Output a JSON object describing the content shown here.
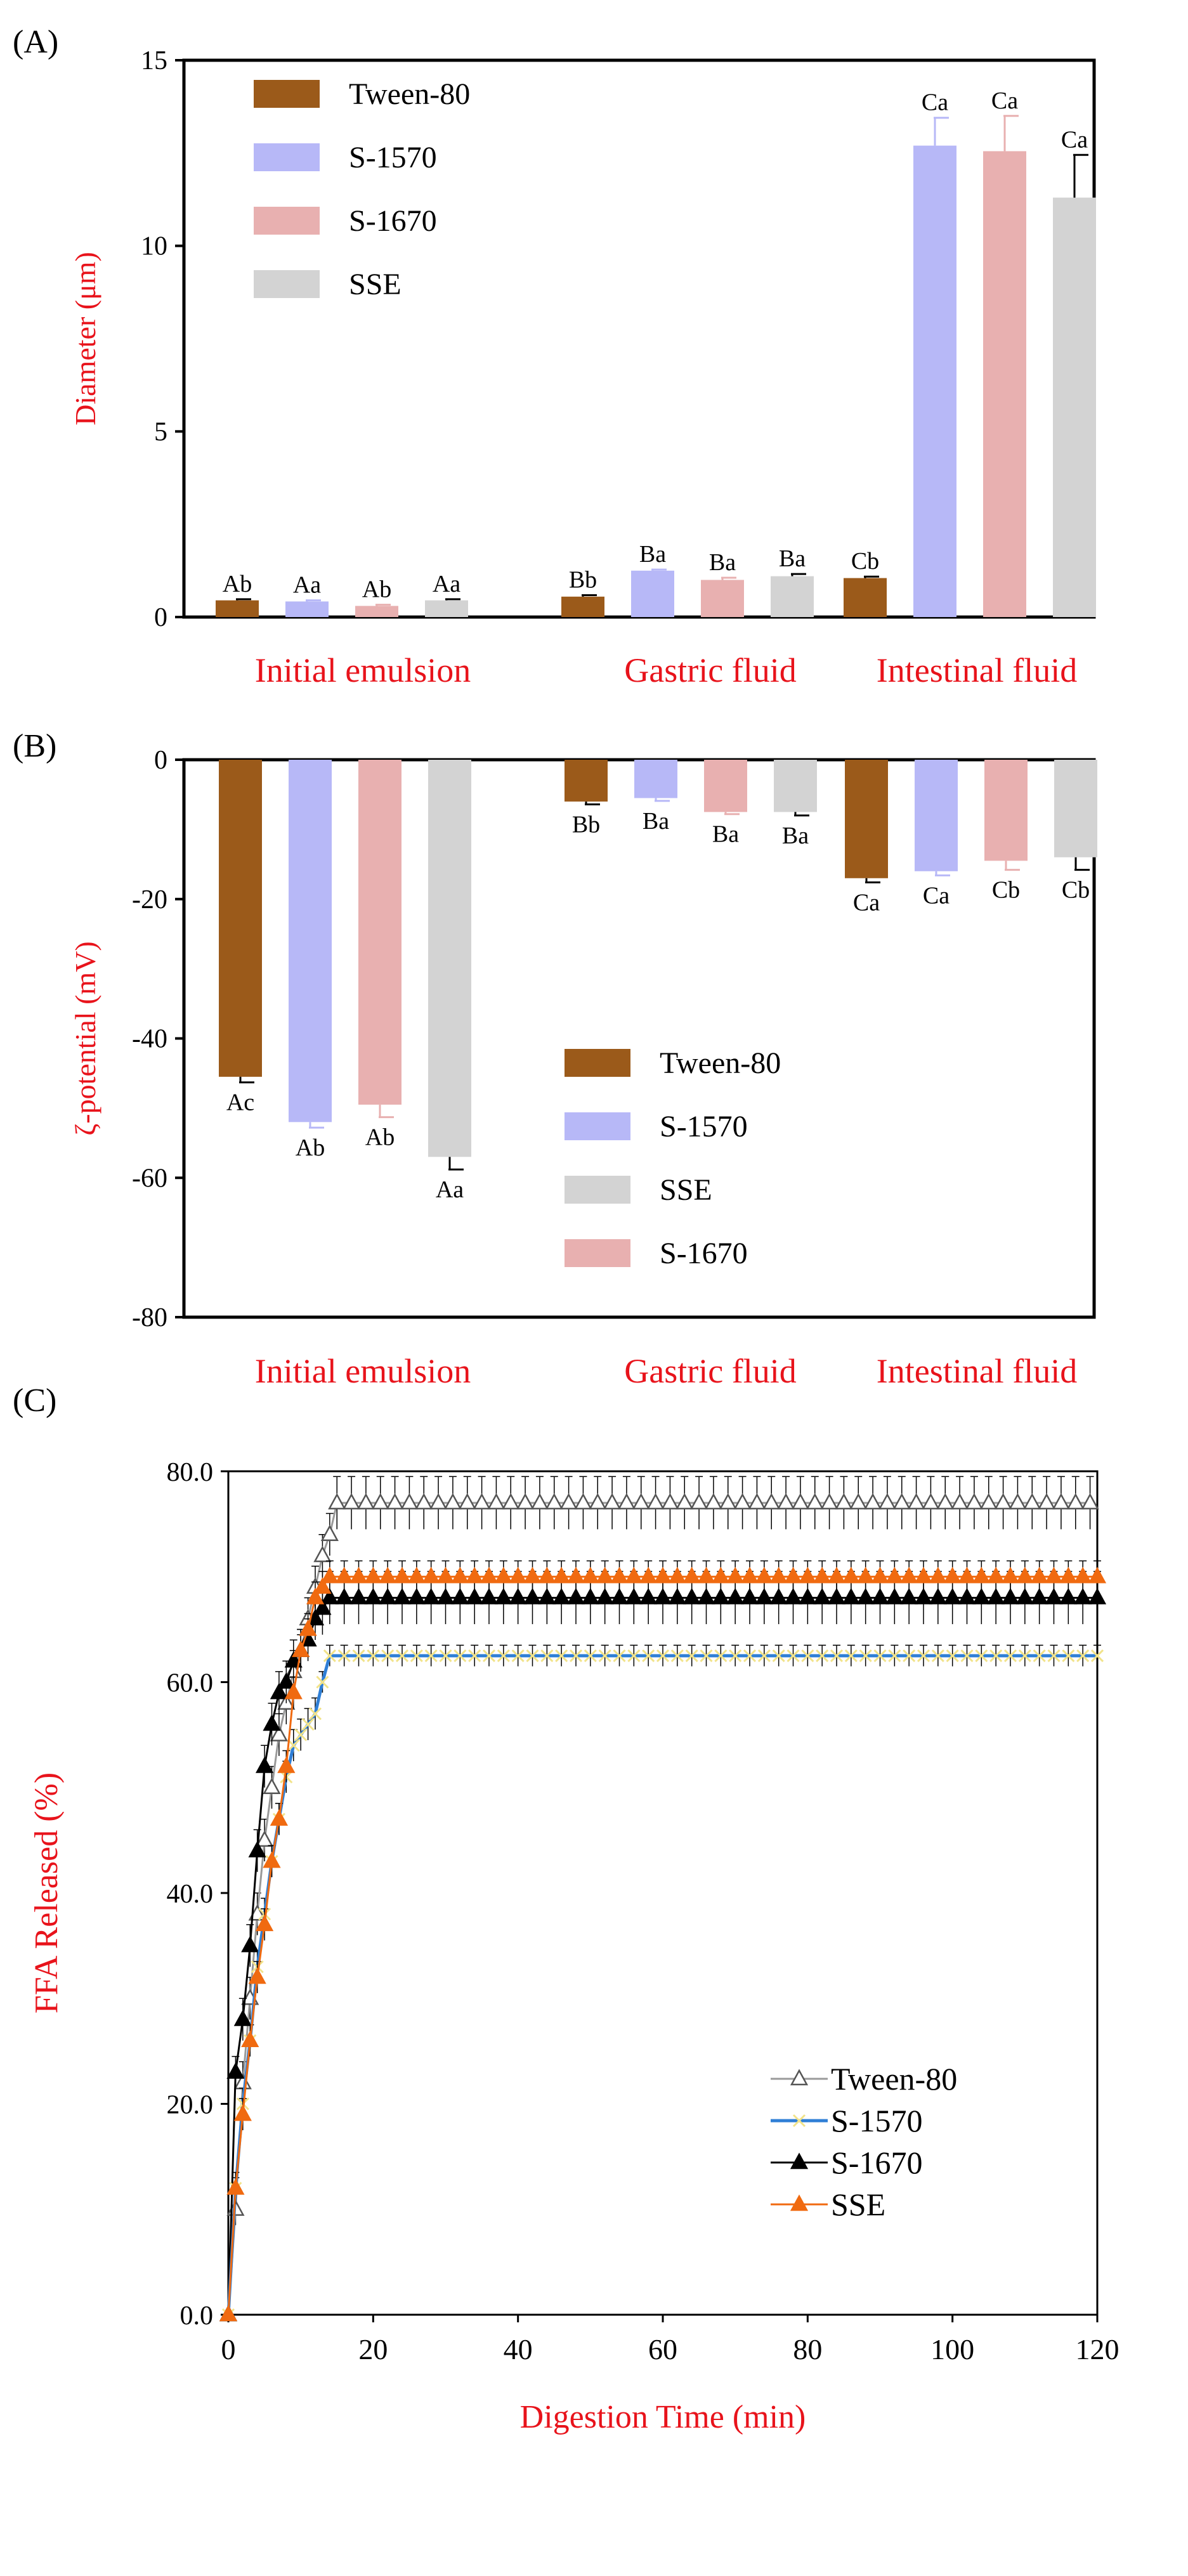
{
  "colors": {
    "tween80": "#9b5a1a",
    "s1570": "#b7b8f7",
    "s1670": "#e8b0b0",
    "sse": "#d3d3d3",
    "axis_label_red": "#e8131b",
    "axis": "#000000",
    "line_tween": "#9a9a9a",
    "line_s1570": "#2f7fd6",
    "line_s1670": "#000000",
    "line_sse": "#f06a10",
    "mark_s1570": "#f2e38a"
  },
  "chart_data": [
    {
      "type": "bar",
      "panel_label": "(A)",
      "ylabel": "Diameter (μm)",
      "ylim": [
        0,
        15
      ],
      "yticks": [
        0,
        5,
        10,
        15
      ],
      "ytick_labels": [
        "0",
        "5",
        "10",
        "15"
      ],
      "categories": [
        "Initial emulsion",
        "Gastric fluid",
        "Intestinal fluid"
      ],
      "legend_position": "top-left",
      "series": [
        {
          "name": "Tween-80",
          "key": "tween80",
          "values": [
            0.45,
            0.55,
            1.05
          ],
          "errors": [
            0.03,
            0.04,
            0.04
          ],
          "labels": [
            "Ab",
            "Bb",
            "Cb"
          ]
        },
        {
          "name": "S-1570",
          "key": "s1570",
          "values": [
            0.42,
            1.25,
            12.7
          ],
          "errors": [
            0.03,
            0.03,
            0.75
          ],
          "labels": [
            "Aa",
            "Ba",
            "Ca"
          ]
        },
        {
          "name": "S-1670",
          "key": "s1670",
          "values": [
            0.3,
            1.0,
            12.55
          ],
          "errors": [
            0.03,
            0.06,
            0.95
          ],
          "labels": [
            "Ab",
            "Ba",
            "Ca"
          ]
        },
        {
          "name": "SSE",
          "key": "sse",
          "values": [
            0.45,
            1.1,
            11.3
          ],
          "errors": [
            0.03,
            0.06,
            1.15
          ],
          "labels": [
            "Aa",
            "Ba",
            "Ca"
          ]
        }
      ]
    },
    {
      "type": "bar",
      "panel_label": "(B)",
      "ylabel": "ζ-potential (mV)",
      "ylim": [
        -80,
        0
      ],
      "yticks": [
        0,
        -20,
        -40,
        -60,
        -80
      ],
      "ytick_labels": [
        "0",
        "-20",
        "-40",
        "-60",
        "-80"
      ],
      "categories": [
        "Initial emulsion",
        "Gastric fluid",
        "Intestinal fluid"
      ],
      "legend_position": "bottom-right",
      "legend_order": [
        "tween80",
        "s1570",
        "sse",
        "s1670"
      ],
      "series": [
        {
          "name": "Tween-80",
          "key": "tween80",
          "values": [
            -45.5,
            -6.0,
            -17.0
          ],
          "errors": [
            0.8,
            0.4,
            0.6
          ],
          "labels": [
            "Ac",
            "Bb",
            "Ca"
          ]
        },
        {
          "name": "S-1570",
          "key": "s1570",
          "values": [
            -52.0,
            -5.5,
            -16.0
          ],
          "errors": [
            0.8,
            0.4,
            0.6
          ],
          "labels": [
            "Ab",
            "Ba",
            "Ca"
          ]
        },
        {
          "name": "S-1670",
          "key": "s1670",
          "values": [
            -49.5,
            -7.5,
            -14.5
          ],
          "errors": [
            1.8,
            0.3,
            1.3
          ],
          "labels": [
            "Ab",
            "Ba",
            "Cb"
          ]
        },
        {
          "name": "SSE",
          "key": "sse",
          "values": [
            -57.0,
            -7.5,
            -14.0
          ],
          "errors": [
            1.8,
            0.5,
            1.8
          ],
          "labels": [
            "Aa",
            "Ba",
            "Cb"
          ]
        }
      ]
    },
    {
      "type": "line",
      "panel_label": "(C)",
      "xlabel": "Digestion Time (min)",
      "ylabel": "FFA Released (%)",
      "xlim": [
        0,
        120
      ],
      "ylim": [
        0,
        80
      ],
      "xticks": [
        0,
        20,
        40,
        60,
        80,
        100,
        120
      ],
      "xtick_labels": [
        "0",
        "20",
        "40",
        "60",
        "80",
        "100",
        "120"
      ],
      "yticks": [
        0,
        20,
        40,
        60,
        80
      ],
      "ytick_labels": [
        "0.0",
        "20.0",
        "40.0",
        "60.0",
        "80.0"
      ],
      "legend_position": "bottom-right",
      "series": [
        {
          "name": "Tween-80",
          "key": "tween",
          "x": [
            0,
            1,
            2,
            3,
            4,
            5,
            6,
            7,
            8,
            9,
            10,
            11,
            12,
            13,
            14,
            15
          ],
          "y": [
            0,
            10,
            22,
            30,
            38,
            45,
            50,
            55,
            58,
            61,
            63,
            66,
            69,
            72,
            74,
            77
          ],
          "plateau": 77,
          "errors": [
            0,
            1.5,
            2,
            2,
            2,
            2,
            2,
            2,
            2,
            2,
            2,
            2,
            2,
            2,
            2,
            2.5
          ]
        },
        {
          "name": "S-1570",
          "key": "s1570",
          "x": [
            0,
            1,
            2,
            3,
            4,
            5,
            6,
            7,
            8,
            9,
            10,
            11,
            12,
            13,
            14
          ],
          "y": [
            0,
            12,
            20,
            26,
            33,
            38,
            43,
            47,
            51,
            54,
            55,
            56,
            57,
            60,
            62.5
          ],
          "plateau": 62.5,
          "errors": [
            0,
            1,
            1.5,
            1.5,
            1.5,
            1.5,
            1.5,
            1.5,
            1.5,
            1.5,
            1.5,
            1.5,
            1.5,
            1,
            1
          ]
        },
        {
          "name": "S-1670",
          "key": "s1670",
          "x": [
            0,
            1,
            2,
            3,
            4,
            5,
            6,
            7,
            8,
            9,
            10,
            11,
            12,
            13,
            14
          ],
          "y": [
            0,
            23,
            28,
            35,
            44,
            52,
            56,
            59,
            60,
            62,
            63,
            64,
            66,
            67,
            68
          ],
          "plateau": 68,
          "errors": [
            0,
            1.5,
            2,
            2,
            2,
            2,
            2,
            2,
            2,
            2,
            2,
            2,
            2,
            2.5,
            2.5
          ]
        },
        {
          "name": "SSE",
          "key": "sse",
          "x": [
            0,
            1,
            2,
            3,
            4,
            5,
            6,
            7,
            8,
            9,
            10,
            11,
            12,
            13,
            14
          ],
          "y": [
            0,
            12,
            19,
            26,
            32,
            37,
            43,
            47,
            52,
            59,
            63,
            65,
            68,
            69,
            70
          ],
          "plateau": 70,
          "errors": [
            0,
            1.5,
            1.5,
            1.5,
            1.5,
            1.5,
            1.5,
            1.5,
            1.5,
            1.5,
            1.5,
            1.5,
            1.5,
            1.5,
            1.5
          ]
        }
      ]
    }
  ]
}
